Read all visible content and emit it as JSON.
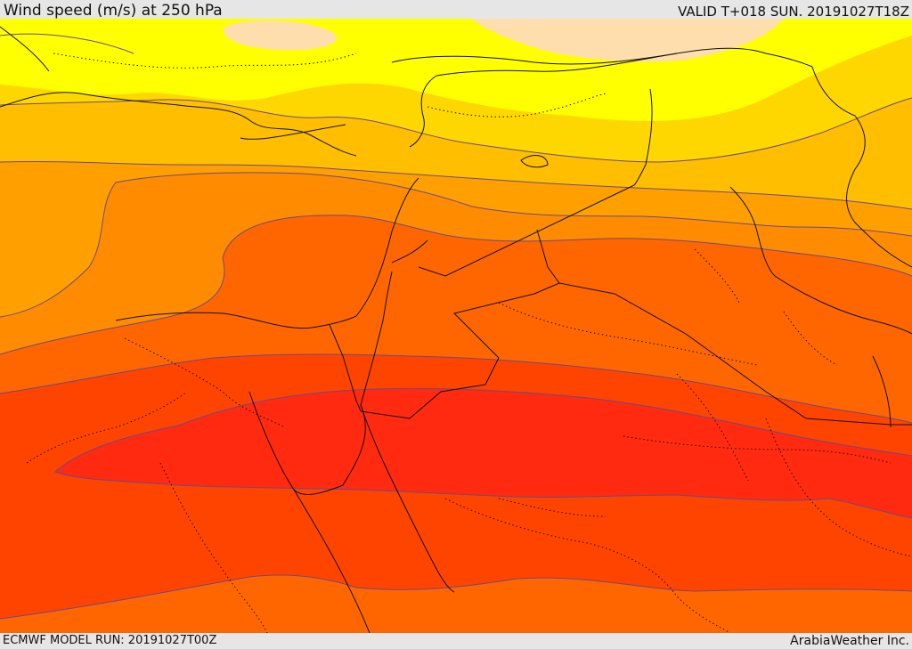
{
  "header": {
    "title": "Wind speed (m/s) at 250 hPa",
    "valid": "VALID T+018 SUN. 20191027T18Z"
  },
  "footer": {
    "model_run": "ECMWF MODEL RUN: 20191027T00Z",
    "credit": "ArabiaWeather Inc."
  },
  "map": {
    "variable": "250 hPa wind speed",
    "fill_colors": [
      "#ffffff",
      "#ffdead",
      "#ffff00",
      "#ffd700",
      "#ffbf00",
      "#ffa000",
      "#ff8c00",
      "#ff6600",
      "#ff4400",
      "#ff2a10"
    ],
    "contour_color": "#6b4a8a"
  }
}
